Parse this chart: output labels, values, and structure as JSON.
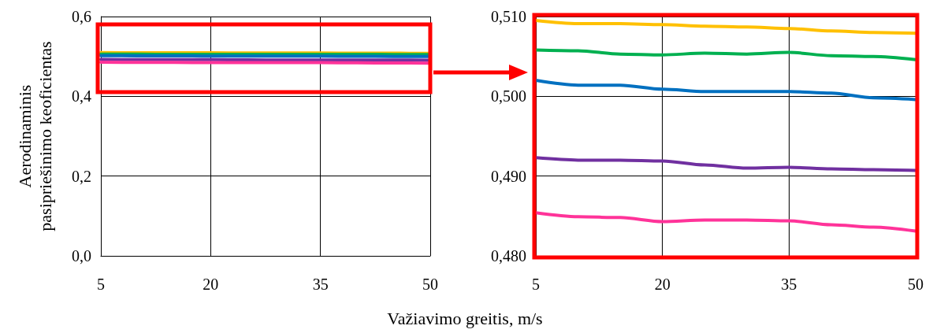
{
  "chart_data": [
    {
      "type": "line",
      "ylabel": "Aerodinaminis\npasipriešinimo keoficientas",
      "x": [
        5,
        10,
        15,
        20,
        25,
        30,
        35,
        40,
        45,
        50
      ],
      "xlim": [
        5,
        50
      ],
      "xticks": [
        5,
        20,
        35,
        50
      ],
      "ylim": [
        0,
        0.6
      ],
      "yticks": [
        {
          "value": 0,
          "label": "0,0"
        },
        {
          "value": 0.2,
          "label": "0,2"
        },
        {
          "value": 0.4,
          "label": "0,4"
        },
        {
          "value": 0.6,
          "label": "0,6"
        }
      ],
      "grid": true,
      "line_style": "solid",
      "series": [
        {
          "color": "#ffc000",
          "values": [
            0.5095,
            0.5091,
            0.5091,
            0.509,
            0.5088,
            0.5087,
            0.5085,
            0.5082,
            0.508,
            0.5079
          ]
        },
        {
          "color": "#00b050",
          "values": [
            0.5058,
            0.5057,
            0.5053,
            0.5052,
            0.5054,
            0.5053,
            0.5055,
            0.5051,
            0.505,
            0.5046
          ]
        },
        {
          "color": "#0070c0",
          "values": [
            0.502,
            0.5014,
            0.5014,
            0.5009,
            0.5006,
            0.5006,
            0.5006,
            0.5004,
            0.4998,
            0.4996
          ]
        },
        {
          "color": "#7030a0",
          "values": [
            0.4923,
            0.492,
            0.492,
            0.4919,
            0.4914,
            0.491,
            0.4911,
            0.4909,
            0.4908,
            0.4907
          ]
        },
        {
          "color": "#ff3399",
          "values": [
            0.4854,
            0.4849,
            0.4848,
            0.4843,
            0.4845,
            0.4845,
            0.4844,
            0.4839,
            0.4836,
            0.4831
          ]
        }
      ]
    },
    {
      "type": "line",
      "xlabel": "Važiavimo greitis, m/s",
      "x": [
        5,
        10,
        15,
        20,
        25,
        30,
        35,
        40,
        45,
        50
      ],
      "xlim": [
        5,
        50
      ],
      "xticks": [
        5,
        20,
        35,
        50
      ],
      "ylim": [
        0.48,
        0.51
      ],
      "yticks": [
        {
          "value": 0.48,
          "label": "0,480"
        },
        {
          "value": 0.49,
          "label": "0,490"
        },
        {
          "value": 0.5,
          "label": "0,500"
        },
        {
          "value": 0.51,
          "label": "0,510"
        }
      ],
      "grid": true,
      "line_style": "solid",
      "series": [
        {
          "color": "#ffc000",
          "values": [
            0.5095,
            0.5091,
            0.5091,
            0.509,
            0.5088,
            0.5087,
            0.5085,
            0.5082,
            0.508,
            0.5079
          ]
        },
        {
          "color": "#00b050",
          "values": [
            0.5058,
            0.5057,
            0.5053,
            0.5052,
            0.5054,
            0.5053,
            0.5055,
            0.5051,
            0.505,
            0.5046
          ]
        },
        {
          "color": "#0070c0",
          "values": [
            0.502,
            0.5014,
            0.5014,
            0.5009,
            0.5006,
            0.5006,
            0.5006,
            0.5004,
            0.4998,
            0.4996
          ]
        },
        {
          "color": "#7030a0",
          "values": [
            0.4923,
            0.492,
            0.492,
            0.4919,
            0.4914,
            0.491,
            0.4911,
            0.4909,
            0.4908,
            0.4907
          ]
        },
        {
          "color": "#ff3399",
          "values": [
            0.4854,
            0.4849,
            0.4848,
            0.4843,
            0.4845,
            0.4845,
            0.4844,
            0.4839,
            0.4836,
            0.4831
          ]
        }
      ]
    }
  ]
}
